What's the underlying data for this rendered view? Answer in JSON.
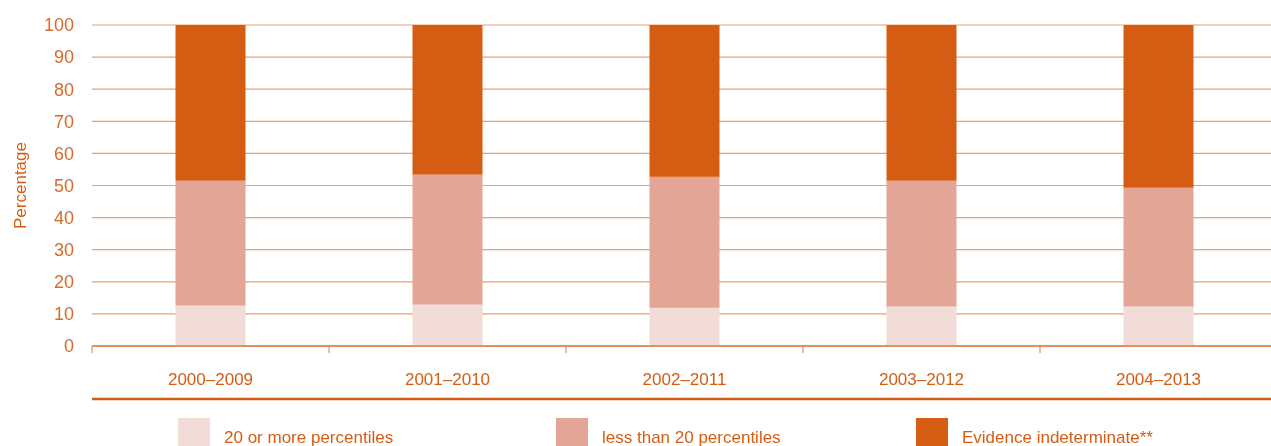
{
  "chart_data": {
    "type": "bar",
    "stacked": true,
    "ylabel": "Percentage",
    "categories": [
      "2000–2009",
      "2001–2010",
      "2002–2011",
      "2003–2012",
      "2004–2013"
    ],
    "series": [
      {
        "name": "20 or more percentiles",
        "color": "#f2dcd7",
        "values": [
          12.6,
          12.9,
          11.9,
          12.3,
          12.3
        ]
      },
      {
        "name": "less than 20 percentiles",
        "color": "#e2a596",
        "values": [
          38.9,
          40.5,
          40.8,
          39.2,
          37.0
        ]
      },
      {
        "name": "Evidence indeterminate**",
        "color": "#d45d13",
        "values": [
          48.5,
          46.6,
          47.3,
          48.5,
          50.7
        ]
      }
    ],
    "ylim": [
      0,
      100
    ],
    "yticks": [
      0,
      10,
      20,
      30,
      40,
      50,
      60,
      70,
      80,
      90,
      100
    ],
    "grid": "y",
    "legend": "bottom"
  }
}
